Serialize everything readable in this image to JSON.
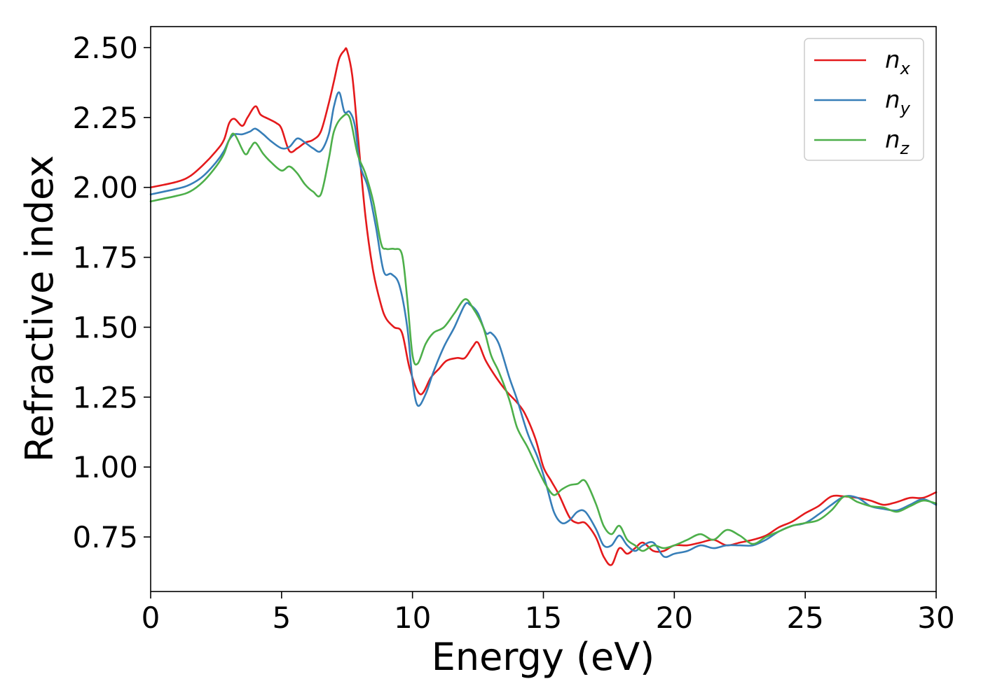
{
  "chart_data": {
    "type": "line",
    "xlabel": "Energy (eV)",
    "ylabel": "Refractive index",
    "xlim": [
      0,
      30
    ],
    "ylim": [
      0.555,
      2.575
    ],
    "xticks": [
      0,
      5,
      10,
      15,
      20,
      25,
      30
    ],
    "xtick_labels": [
      "0",
      "5",
      "10",
      "15",
      "20",
      "25",
      "30"
    ],
    "yticks": [
      0.75,
      1.0,
      1.25,
      1.5,
      1.75,
      2.0,
      2.25,
      2.5
    ],
    "ytick_labels": [
      "0.75",
      "1.00",
      "1.25",
      "1.50",
      "1.75",
      "2.00",
      "2.25",
      "2.50"
    ],
    "grid": false,
    "legend_position": "top-right",
    "series": [
      {
        "name": "n",
        "sub": "x",
        "color": "#e41a1c",
        "x": [
          0,
          1,
          1.5,
          2,
          2.5,
          2.8,
          3.0,
          3.2,
          3.5,
          3.7,
          4.0,
          4.2,
          4.5,
          4.8,
          5.0,
          5.3,
          5.6,
          5.9,
          6.2,
          6.5,
          6.8,
          7.0,
          7.2,
          7.4,
          7.5,
          7.7,
          7.9,
          8.2,
          8.5,
          8.8,
          9.0,
          9.3,
          9.6,
          9.9,
          10.3,
          10.7,
          11.0,
          11.3,
          11.7,
          12.0,
          12.3,
          12.5,
          12.8,
          13.2,
          13.6,
          14.0,
          14.3,
          14.7,
          15.0,
          15.3,
          15.6,
          16.0,
          16.3,
          16.6,
          17.0,
          17.3,
          17.6,
          17.9,
          18.2,
          18.5,
          18.8,
          19.2,
          19.6,
          20.0,
          20.5,
          21.0,
          21.5,
          22.0,
          22.5,
          23.0,
          23.5,
          24.0,
          24.5,
          25.0,
          25.5,
          26.0,
          26.5,
          27.0,
          27.5,
          28.0,
          28.5,
          29.0,
          29.5,
          30
        ],
        "y": [
          2.0,
          2.02,
          2.04,
          2.08,
          2.13,
          2.17,
          2.23,
          2.245,
          2.22,
          2.25,
          2.29,
          2.26,
          2.245,
          2.23,
          2.21,
          2.13,
          2.14,
          2.16,
          2.17,
          2.2,
          2.3,
          2.38,
          2.46,
          2.49,
          2.49,
          2.4,
          2.2,
          1.9,
          1.7,
          1.58,
          1.53,
          1.5,
          1.48,
          1.35,
          1.26,
          1.32,
          1.35,
          1.38,
          1.39,
          1.39,
          1.43,
          1.445,
          1.38,
          1.32,
          1.27,
          1.23,
          1.19,
          1.1,
          1.0,
          0.95,
          0.9,
          0.82,
          0.8,
          0.8,
          0.75,
          0.68,
          0.65,
          0.71,
          0.69,
          0.71,
          0.73,
          0.7,
          0.7,
          0.72,
          0.72,
          0.73,
          0.74,
          0.72,
          0.73,
          0.74,
          0.755,
          0.785,
          0.805,
          0.835,
          0.86,
          0.895,
          0.895,
          0.89,
          0.88,
          0.865,
          0.875,
          0.89,
          0.89,
          0.91
        ]
      },
      {
        "name": "n",
        "sub": "y",
        "color": "#377eb8",
        "x": [
          0,
          1,
          1.5,
          2,
          2.5,
          2.8,
          3.0,
          3.2,
          3.5,
          3.8,
          4.0,
          4.3,
          4.6,
          5.0,
          5.3,
          5.6,
          5.9,
          6.2,
          6.5,
          6.8,
          7.0,
          7.2,
          7.4,
          7.6,
          7.8,
          8.0,
          8.3,
          8.6,
          8.9,
          9.2,
          9.5,
          9.8,
          10.0,
          10.2,
          10.5,
          10.8,
          11.2,
          11.6,
          12.0,
          12.2,
          12.5,
          12.8,
          13.0,
          13.3,
          13.7,
          14.0,
          14.4,
          14.8,
          15.1,
          15.4,
          15.7,
          16.0,
          16.3,
          16.6,
          17.0,
          17.3,
          17.6,
          17.9,
          18.2,
          18.5,
          18.8,
          19.2,
          19.6,
          20.0,
          20.5,
          21.0,
          21.5,
          22.0,
          22.5,
          23.0,
          23.5,
          24.0,
          24.5,
          25.0,
          25.5,
          26.0,
          26.5,
          27.0,
          27.5,
          28.0,
          28.5,
          29.0,
          29.5,
          30
        ],
        "y": [
          1.975,
          1.995,
          2.01,
          2.04,
          2.09,
          2.13,
          2.17,
          2.19,
          2.19,
          2.2,
          2.21,
          2.19,
          2.165,
          2.14,
          2.145,
          2.175,
          2.16,
          2.14,
          2.13,
          2.19,
          2.29,
          2.34,
          2.27,
          2.27,
          2.22,
          2.08,
          2.0,
          1.86,
          1.7,
          1.69,
          1.65,
          1.5,
          1.31,
          1.22,
          1.26,
          1.34,
          1.43,
          1.5,
          1.58,
          1.58,
          1.55,
          1.48,
          1.48,
          1.44,
          1.32,
          1.24,
          1.12,
          1.03,
          0.94,
          0.84,
          0.8,
          0.81,
          0.84,
          0.84,
          0.78,
          0.72,
          0.72,
          0.755,
          0.72,
          0.7,
          0.72,
          0.73,
          0.68,
          0.69,
          0.7,
          0.72,
          0.71,
          0.72,
          0.72,
          0.72,
          0.74,
          0.77,
          0.79,
          0.8,
          0.83,
          0.865,
          0.895,
          0.89,
          0.86,
          0.85,
          0.845,
          0.865,
          0.885,
          0.865
        ]
      },
      {
        "name": "n",
        "sub": "z",
        "color": "#4daf4a",
        "x": [
          0,
          1,
          1.5,
          2,
          2.5,
          2.8,
          3.0,
          3.2,
          3.6,
          3.8,
          4.0,
          4.3,
          4.6,
          5.0,
          5.3,
          5.6,
          5.9,
          6.2,
          6.5,
          6.8,
          7.0,
          7.3,
          7.6,
          7.9,
          8.2,
          8.5,
          8.8,
          9.0,
          9.3,
          9.6,
          9.8,
          10.0,
          10.2,
          10.5,
          10.8,
          11.2,
          11.6,
          12.0,
          12.3,
          12.7,
          13.0,
          13.3,
          13.7,
          14.0,
          14.4,
          14.8,
          15.1,
          15.4,
          15.7,
          16.0,
          16.3,
          16.6,
          17.0,
          17.3,
          17.6,
          17.9,
          18.2,
          18.5,
          18.8,
          19.2,
          19.6,
          20.0,
          20.5,
          21.0,
          21.5,
          22.0,
          22.5,
          23.0,
          23.5,
          24.0,
          24.5,
          25.0,
          25.5,
          26.0,
          26.5,
          27.0,
          27.5,
          28.0,
          28.5,
          29.0,
          29.5,
          30
        ],
        "y": [
          1.95,
          1.97,
          1.985,
          2.02,
          2.075,
          2.12,
          2.17,
          2.19,
          2.12,
          2.14,
          2.16,
          2.12,
          2.09,
          2.06,
          2.075,
          2.05,
          2.01,
          1.985,
          1.975,
          2.1,
          2.2,
          2.25,
          2.25,
          2.12,
          2.05,
          1.95,
          1.8,
          1.78,
          1.78,
          1.76,
          1.6,
          1.4,
          1.37,
          1.44,
          1.48,
          1.5,
          1.55,
          1.6,
          1.57,
          1.5,
          1.4,
          1.34,
          1.24,
          1.14,
          1.07,
          0.99,
          0.935,
          0.9,
          0.92,
          0.935,
          0.94,
          0.95,
          0.87,
          0.79,
          0.76,
          0.79,
          0.74,
          0.72,
          0.7,
          0.72,
          0.71,
          0.72,
          0.74,
          0.76,
          0.74,
          0.775,
          0.755,
          0.725,
          0.75,
          0.77,
          0.79,
          0.8,
          0.81,
          0.845,
          0.895,
          0.875,
          0.86,
          0.855,
          0.84,
          0.86,
          0.88,
          0.87
        ]
      }
    ]
  }
}
